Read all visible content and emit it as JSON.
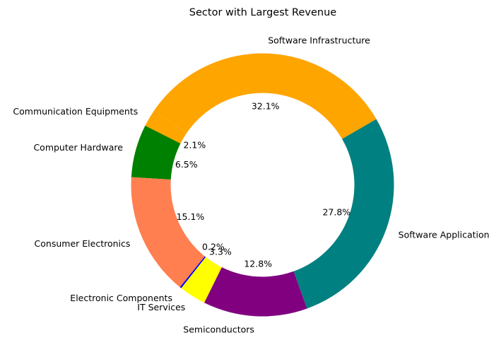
{
  "chart_data": {
    "type": "pie",
    "subtype": "donut",
    "title": "Sector with Largest Revenue",
    "slices": [
      {
        "label": "Software Infrastructure",
        "pct_label": "32.1%",
        "value": 32.1,
        "color": "#FFA500"
      },
      {
        "label": "Communication Equipments",
        "pct_label": "2.1%",
        "value": 2.1,
        "color": "#FFA500"
      },
      {
        "label": "Computer Hardware",
        "pct_label": "6.5%",
        "value": 6.5,
        "color": "#008000"
      },
      {
        "label": "Consumer Electronics",
        "pct_label": "15.1%",
        "value": 15.1,
        "color": "#FF7F50"
      },
      {
        "label": "Electronic Components",
        "pct_label": "0.2%",
        "value": 0.2,
        "color": "#0000FF"
      },
      {
        "label": "IT Services",
        "pct_label": "3.3%",
        "value": 3.3,
        "color": "#FFFF00"
      },
      {
        "label": "Semiconductors",
        "pct_label": "12.8%",
        "value": 12.8,
        "color": "#800080"
      },
      {
        "label": "Software Application",
        "pct_label": "27.8%",
        "value": 27.8,
        "color": "#008080"
      }
    ],
    "start_angle": 30,
    "direction": "counterclockwise",
    "legend": "none"
  }
}
